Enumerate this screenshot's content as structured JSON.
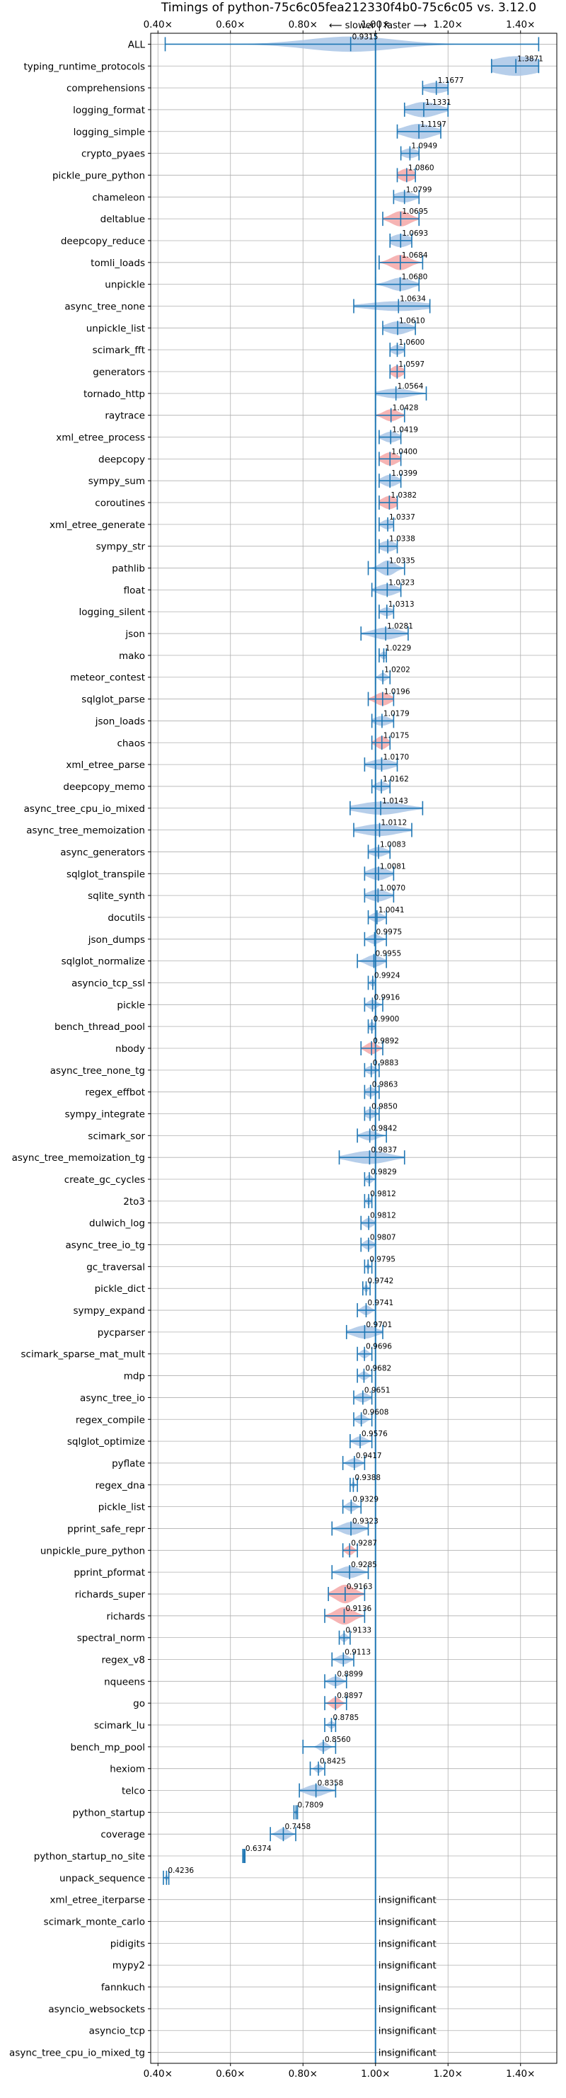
{
  "chart_data": {
    "type": "violin",
    "title": "Timings of python-75c6c05fea212330f4b0-75c6c05 vs. 3.12.0",
    "subtitle": "⟵ slower | faster ⟶",
    "xlim": [
      0.38,
      1.5
    ],
    "xticks": [
      "0.40×",
      "0.60×",
      "0.80×",
      "1.00×",
      "1.20×",
      "1.40×"
    ],
    "xtick_values": [
      0.4,
      0.6,
      0.8,
      1.0,
      1.2,
      1.4
    ],
    "reference_line": 1.0,
    "grid": true,
    "insignificant_label": "insignificant",
    "benchmarks": [
      {
        "name": "ALL",
        "value": 0.9315,
        "label": "0.9315",
        "lo": 0.42,
        "hi": 1.45,
        "spread": 0.12,
        "width": 0.7,
        "color": "blue"
      },
      {
        "name": "typing_runtime_protocols",
        "value": 1.3871,
        "label": "1.3871",
        "lo": 1.32,
        "hi": 1.45,
        "spread": 0.07,
        "width": 0.9,
        "color": "blue"
      },
      {
        "name": "comprehensions",
        "value": 1.1677,
        "label": "1.1677",
        "lo": 1.13,
        "hi": 1.2,
        "spread": 0.03,
        "width": 0.5,
        "color": "blue"
      },
      {
        "name": "logging_format",
        "value": 1.1331,
        "label": "1.1331",
        "lo": 1.08,
        "hi": 1.2,
        "spread": 0.04,
        "width": 0.7,
        "color": "blue"
      },
      {
        "name": "logging_simple",
        "value": 1.1197,
        "label": "1.1197",
        "lo": 1.06,
        "hi": 1.18,
        "spread": 0.04,
        "width": 0.7,
        "color": "blue"
      },
      {
        "name": "crypto_pyaes",
        "value": 1.0949,
        "label": "1.0949",
        "lo": 1.07,
        "hi": 1.12,
        "spread": 0.02,
        "width": 0.45,
        "color": "blue"
      },
      {
        "name": "pickle_pure_python",
        "value": 1.086,
        "label": "1.0860",
        "lo": 1.06,
        "hi": 1.11,
        "spread": 0.02,
        "width": 0.6,
        "color": "red"
      },
      {
        "name": "chameleon",
        "value": 1.0799,
        "label": "1.0799",
        "lo": 1.05,
        "hi": 1.12,
        "spread": 0.025,
        "width": 0.5,
        "color": "blue"
      },
      {
        "name": "deltablue",
        "value": 1.0695,
        "label": "1.0695",
        "lo": 1.02,
        "hi": 1.12,
        "spread": 0.025,
        "width": 0.7,
        "color": "red"
      },
      {
        "name": "deepcopy_reduce",
        "value": 1.0693,
        "label": "1.0693",
        "lo": 1.04,
        "hi": 1.1,
        "spread": 0.025,
        "width": 0.6,
        "color": "blue"
      },
      {
        "name": "tomli_loads",
        "value": 1.0684,
        "label": "1.0684",
        "lo": 1.01,
        "hi": 1.13,
        "spread": 0.025,
        "width": 0.7,
        "color": "red"
      },
      {
        "name": "unpickle",
        "value": 1.068,
        "label": "1.0680",
        "lo": 1.0,
        "hi": 1.12,
        "spread": 0.03,
        "width": 0.6,
        "color": "blue"
      },
      {
        "name": "async_tree_none",
        "value": 1.0634,
        "label": "1.0634",
        "lo": 0.94,
        "hi": 1.15,
        "spread": 0.08,
        "width": 0.45,
        "color": "blue"
      },
      {
        "name": "unpickle_list",
        "value": 1.061,
        "label": "1.0610",
        "lo": 1.02,
        "hi": 1.11,
        "spread": 0.03,
        "width": 0.6,
        "color": "blue"
      },
      {
        "name": "scimark_fft",
        "value": 1.06,
        "label": "1.0600",
        "lo": 1.04,
        "hi": 1.08,
        "spread": 0.015,
        "width": 0.45,
        "color": "blue"
      },
      {
        "name": "generators",
        "value": 1.0597,
        "label": "1.0597",
        "lo": 1.04,
        "hi": 1.08,
        "spread": 0.015,
        "width": 0.55,
        "color": "red"
      },
      {
        "name": "tornado_http",
        "value": 1.0564,
        "label": "1.0564",
        "lo": 1.0,
        "hi": 1.14,
        "spread": 0.04,
        "width": 0.45,
        "color": "blue"
      },
      {
        "name": "raytrace",
        "value": 1.0428,
        "label": "1.0428",
        "lo": 1.0,
        "hi": 1.08,
        "spread": 0.02,
        "width": 0.55,
        "color": "red"
      },
      {
        "name": "xml_etree_process",
        "value": 1.0419,
        "label": "1.0419",
        "lo": 1.01,
        "hi": 1.07,
        "spread": 0.02,
        "width": 0.5,
        "color": "blue"
      },
      {
        "name": "deepcopy",
        "value": 1.04,
        "label": "1.0400",
        "lo": 1.01,
        "hi": 1.07,
        "spread": 0.02,
        "width": 0.6,
        "color": "red"
      },
      {
        "name": "sympy_sum",
        "value": 1.0399,
        "label": "1.0399",
        "lo": 1.01,
        "hi": 1.07,
        "spread": 0.02,
        "width": 0.55,
        "color": "blue"
      },
      {
        "name": "coroutines",
        "value": 1.0382,
        "label": "1.0382",
        "lo": 1.01,
        "hi": 1.06,
        "spread": 0.02,
        "width": 0.6,
        "color": "red"
      },
      {
        "name": "xml_etree_generate",
        "value": 1.0337,
        "label": "1.0337",
        "lo": 1.01,
        "hi": 1.05,
        "spread": 0.015,
        "width": 0.45,
        "color": "blue"
      },
      {
        "name": "sympy_str",
        "value": 1.0338,
        "label": "1.0338",
        "lo": 1.01,
        "hi": 1.06,
        "spread": 0.02,
        "width": 0.5,
        "color": "blue"
      },
      {
        "name": "pathlib",
        "value": 1.0335,
        "label": "1.0335",
        "lo": 0.98,
        "hi": 1.08,
        "spread": 0.02,
        "width": 0.7,
        "color": "blue"
      },
      {
        "name": "float",
        "value": 1.0323,
        "label": "1.0323",
        "lo": 0.99,
        "hi": 1.07,
        "spread": 0.025,
        "width": 0.55,
        "color": "blue"
      },
      {
        "name": "logging_silent",
        "value": 1.0313,
        "label": "1.0313",
        "lo": 1.01,
        "hi": 1.05,
        "spread": 0.015,
        "width": 0.4,
        "color": "blue"
      },
      {
        "name": "json",
        "value": 1.0281,
        "label": "1.0281",
        "lo": 0.96,
        "hi": 1.09,
        "spread": 0.035,
        "width": 0.55,
        "color": "blue"
      },
      {
        "name": "mako",
        "value": 1.0229,
        "label": "1.0229",
        "lo": 1.01,
        "hi": 1.03,
        "spread": 0.008,
        "width": 0.35,
        "color": "blue"
      },
      {
        "name": "meteor_contest",
        "value": 1.0202,
        "label": "1.0202",
        "lo": 1.0,
        "hi": 1.04,
        "spread": 0.01,
        "width": 0.4,
        "color": "blue"
      },
      {
        "name": "sqlglot_parse",
        "value": 1.0196,
        "label": "1.0196",
        "lo": 0.98,
        "hi": 1.05,
        "spread": 0.02,
        "width": 0.6,
        "color": "red"
      },
      {
        "name": "json_loads",
        "value": 1.0179,
        "label": "1.0179",
        "lo": 0.99,
        "hi": 1.05,
        "spread": 0.02,
        "width": 0.45,
        "color": "blue"
      },
      {
        "name": "chaos",
        "value": 1.0175,
        "label": "1.0175",
        "lo": 0.99,
        "hi": 1.04,
        "spread": 0.015,
        "width": 0.6,
        "color": "red"
      },
      {
        "name": "xml_etree_parse",
        "value": 1.017,
        "label": "1.0170",
        "lo": 0.97,
        "hi": 1.06,
        "spread": 0.03,
        "width": 0.5,
        "color": "blue"
      },
      {
        "name": "deepcopy_memo",
        "value": 1.0162,
        "label": "1.0162",
        "lo": 0.99,
        "hi": 1.04,
        "spread": 0.015,
        "width": 0.45,
        "color": "blue"
      },
      {
        "name": "async_tree_cpu_io_mixed",
        "value": 1.0143,
        "label": "1.0143",
        "lo": 0.93,
        "hi": 1.13,
        "spread": 0.06,
        "width": 0.6,
        "color": "blue"
      },
      {
        "name": "async_tree_memoization",
        "value": 1.0112,
        "label": "1.0112",
        "lo": 0.94,
        "hi": 1.1,
        "spread": 0.05,
        "width": 0.55,
        "color": "blue"
      },
      {
        "name": "async_generators",
        "value": 1.0083,
        "label": "1.0083",
        "lo": 0.98,
        "hi": 1.04,
        "spread": 0.02,
        "width": 0.45,
        "color": "blue"
      },
      {
        "name": "sqlglot_transpile",
        "value": 1.0081,
        "label": "1.0081",
        "lo": 0.97,
        "hi": 1.05,
        "spread": 0.025,
        "width": 0.6,
        "color": "blue"
      },
      {
        "name": "sqlite_synth",
        "value": 1.007,
        "label": "1.0070",
        "lo": 0.97,
        "hi": 1.05,
        "spread": 0.025,
        "width": 0.55,
        "color": "blue"
      },
      {
        "name": "docutils",
        "value": 1.0041,
        "label": "1.0041",
        "lo": 0.98,
        "hi": 1.03,
        "spread": 0.015,
        "width": 0.45,
        "color": "blue"
      },
      {
        "name": "json_dumps",
        "value": 0.9975,
        "label": "0.9975",
        "lo": 0.97,
        "hi": 1.03,
        "spread": 0.015,
        "width": 0.45,
        "color": "blue"
      },
      {
        "name": "sqlglot_normalize",
        "value": 0.9955,
        "label": "0.9955",
        "lo": 0.95,
        "hi": 1.03,
        "spread": 0.02,
        "width": 0.55,
        "color": "blue"
      },
      {
        "name": "asyncio_tcp_ssl",
        "value": 0.9924,
        "label": "0.9924",
        "lo": 0.98,
        "hi": 1.0,
        "spread": 0.006,
        "width": 0.35,
        "color": "blue"
      },
      {
        "name": "pickle",
        "value": 0.9916,
        "label": "0.9916",
        "lo": 0.97,
        "hi": 1.02,
        "spread": 0.012,
        "width": 0.45,
        "color": "blue"
      },
      {
        "name": "bench_thread_pool",
        "value": 0.99,
        "label": "0.9900",
        "lo": 0.98,
        "hi": 1.0,
        "spread": 0.008,
        "width": 0.4,
        "color": "blue"
      },
      {
        "name": "nbody",
        "value": 0.9892,
        "label": "0.9892",
        "lo": 0.96,
        "hi": 1.02,
        "spread": 0.015,
        "width": 0.55,
        "color": "red"
      },
      {
        "name": "async_tree_none_tg",
        "value": 0.9883,
        "label": "0.9883",
        "lo": 0.97,
        "hi": 1.01,
        "spread": 0.012,
        "width": 0.4,
        "color": "blue"
      },
      {
        "name": "regex_effbot",
        "value": 0.9863,
        "label": "0.9863",
        "lo": 0.97,
        "hi": 1.01,
        "spread": 0.012,
        "width": 0.45,
        "color": "blue"
      },
      {
        "name": "sympy_integrate",
        "value": 0.985,
        "label": "0.9850",
        "lo": 0.97,
        "hi": 1.01,
        "spread": 0.012,
        "width": 0.45,
        "color": "blue"
      },
      {
        "name": "scimark_sor",
        "value": 0.9842,
        "label": "0.9842",
        "lo": 0.95,
        "hi": 1.03,
        "spread": 0.02,
        "width": 0.45,
        "color": "blue"
      },
      {
        "name": "async_tree_memoization_tg",
        "value": 0.9837,
        "label": "0.9837",
        "lo": 0.9,
        "hi": 1.08,
        "spread": 0.05,
        "width": 0.6,
        "color": "blue"
      },
      {
        "name": "create_gc_cycles",
        "value": 0.9829,
        "label": "0.9829",
        "lo": 0.97,
        "hi": 1.0,
        "spread": 0.008,
        "width": 0.4,
        "color": "blue"
      },
      {
        "name": "2to3",
        "value": 0.9812,
        "label": "0.9812",
        "lo": 0.97,
        "hi": 0.99,
        "spread": 0.006,
        "width": 0.35,
        "color": "blue"
      },
      {
        "name": "dulwich_log",
        "value": 0.9812,
        "label": "0.9812",
        "lo": 0.96,
        "hi": 1.0,
        "spread": 0.012,
        "width": 0.45,
        "color": "blue"
      },
      {
        "name": "async_tree_io_tg",
        "value": 0.9807,
        "label": "0.9807",
        "lo": 0.96,
        "hi": 1.0,
        "spread": 0.012,
        "width": 0.45,
        "color": "blue"
      },
      {
        "name": "gc_traversal",
        "value": 0.9795,
        "label": "0.9795",
        "lo": 0.97,
        "hi": 0.99,
        "spread": 0.004,
        "width": 0.3,
        "color": "blue"
      },
      {
        "name": "pickle_dict",
        "value": 0.9742,
        "label": "0.9742",
        "lo": 0.965,
        "hi": 0.985,
        "spread": 0.005,
        "width": 0.35,
        "color": "blue"
      },
      {
        "name": "sympy_expand",
        "value": 0.9741,
        "label": "0.9741",
        "lo": 0.95,
        "hi": 1.0,
        "spread": 0.012,
        "width": 0.45,
        "color": "blue"
      },
      {
        "name": "pycparser",
        "value": 0.9701,
        "label": "0.9701",
        "lo": 0.92,
        "hi": 1.02,
        "spread": 0.03,
        "width": 0.6,
        "color": "blue"
      },
      {
        "name": "scimark_sparse_mat_mult",
        "value": 0.9696,
        "label": "0.9696",
        "lo": 0.95,
        "hi": 0.99,
        "spread": 0.01,
        "width": 0.4,
        "color": "blue"
      },
      {
        "name": "mdp",
        "value": 0.9682,
        "label": "0.9682",
        "lo": 0.95,
        "hi": 0.99,
        "spread": 0.01,
        "width": 0.4,
        "color": "blue"
      },
      {
        "name": "async_tree_io",
        "value": 0.9651,
        "label": "0.9651",
        "lo": 0.94,
        "hi": 0.99,
        "spread": 0.015,
        "width": 0.45,
        "color": "blue"
      },
      {
        "name": "regex_compile",
        "value": 0.9608,
        "label": "0.9608",
        "lo": 0.94,
        "hi": 0.99,
        "spread": 0.012,
        "width": 0.45,
        "color": "blue"
      },
      {
        "name": "sqlglot_optimize",
        "value": 0.9576,
        "label": "0.9576",
        "lo": 0.93,
        "hi": 0.99,
        "spread": 0.015,
        "width": 0.45,
        "color": "blue"
      },
      {
        "name": "pyflate",
        "value": 0.9417,
        "label": "0.9417",
        "lo": 0.91,
        "hi": 0.97,
        "spread": 0.015,
        "width": 0.45,
        "color": "blue"
      },
      {
        "name": "regex_dna",
        "value": 0.9388,
        "label": "0.9388",
        "lo": 0.93,
        "hi": 0.95,
        "spread": 0.004,
        "width": 0.3,
        "color": "blue"
      },
      {
        "name": "pickle_list",
        "value": 0.9329,
        "label": "0.9329",
        "lo": 0.91,
        "hi": 0.96,
        "spread": 0.012,
        "width": 0.45,
        "color": "blue"
      },
      {
        "name": "pprint_safe_repr",
        "value": 0.9323,
        "label": "0.9323",
        "lo": 0.88,
        "hi": 0.98,
        "spread": 0.025,
        "width": 0.6,
        "color": "blue"
      },
      {
        "name": "unpickle_pure_python",
        "value": 0.9287,
        "label": "0.9287",
        "lo": 0.91,
        "hi": 0.95,
        "spread": 0.01,
        "width": 0.45,
        "color": "red"
      },
      {
        "name": "pprint_pformat",
        "value": 0.9285,
        "label": "0.9285",
        "lo": 0.88,
        "hi": 0.98,
        "spread": 0.025,
        "width": 0.55,
        "color": "blue"
      },
      {
        "name": "richards_super",
        "value": 0.9163,
        "label": "0.9163",
        "lo": 0.87,
        "hi": 0.97,
        "spread": 0.025,
        "width": 0.85,
        "color": "red"
      },
      {
        "name": "richards",
        "value": 0.9136,
        "label": "0.9136",
        "lo": 0.86,
        "hi": 0.97,
        "spread": 0.025,
        "width": 0.8,
        "color": "red"
      },
      {
        "name": "spectral_norm",
        "value": 0.9133,
        "label": "0.9133",
        "lo": 0.9,
        "hi": 0.93,
        "spread": 0.008,
        "width": 0.4,
        "color": "blue"
      },
      {
        "name": "regex_v8",
        "value": 0.9113,
        "label": "0.9113",
        "lo": 0.88,
        "hi": 0.94,
        "spread": 0.015,
        "width": 0.45,
        "color": "blue"
      },
      {
        "name": "nqueens",
        "value": 0.8899,
        "label": "0.8899",
        "lo": 0.86,
        "hi": 0.92,
        "spread": 0.015,
        "width": 0.45,
        "color": "blue"
      },
      {
        "name": "go",
        "value": 0.8897,
        "label": "0.8897",
        "lo": 0.86,
        "hi": 0.92,
        "spread": 0.012,
        "width": 0.55,
        "color": "red"
      },
      {
        "name": "scimark_lu",
        "value": 0.8785,
        "label": "0.8785",
        "lo": 0.86,
        "hi": 0.89,
        "spread": 0.008,
        "width": 0.35,
        "color": "blue"
      },
      {
        "name": "bench_mp_pool",
        "value": 0.856,
        "label": "0.8560",
        "lo": 0.8,
        "hi": 0.89,
        "spread": 0.012,
        "width": 0.45,
        "color": "blue"
      },
      {
        "name": "hexiom",
        "value": 0.8425,
        "label": "0.8425",
        "lo": 0.82,
        "hi": 0.86,
        "spread": 0.008,
        "width": 0.4,
        "color": "blue"
      },
      {
        "name": "telco",
        "value": 0.8358,
        "label": "0.8358",
        "lo": 0.79,
        "hi": 0.89,
        "spread": 0.025,
        "width": 0.55,
        "color": "blue"
      },
      {
        "name": "python_startup",
        "value": 0.7809,
        "label": "0.7809",
        "lo": 0.775,
        "hi": 0.785,
        "spread": 0.002,
        "width": 0.3,
        "color": "blue"
      },
      {
        "name": "coverage",
        "value": 0.7458,
        "label": "0.7458",
        "lo": 0.71,
        "hi": 0.78,
        "spread": 0.015,
        "width": 0.55,
        "color": "blue"
      },
      {
        "name": "python_startup_no_site",
        "value": 0.6374,
        "label": "0.6374",
        "lo": 0.634,
        "hi": 0.64,
        "spread": 0.002,
        "width": 0.3,
        "color": "blue"
      },
      {
        "name": "unpack_sequence",
        "value": 0.4236,
        "label": "0.4236",
        "lo": 0.415,
        "hi": 0.43,
        "spread": 0.003,
        "width": 0.3,
        "color": "blue"
      },
      {
        "name": "xml_etree_iterparse",
        "insignificant": true
      },
      {
        "name": "scimark_monte_carlo",
        "insignificant": true
      },
      {
        "name": "pidigits",
        "insignificant": true
      },
      {
        "name": "mypy2",
        "insignificant": true
      },
      {
        "name": "fannkuch",
        "insignificant": true
      },
      {
        "name": "asyncio_websockets",
        "insignificant": true
      },
      {
        "name": "asyncio_tcp",
        "insignificant": true
      },
      {
        "name": "async_tree_cpu_io_mixed_tg",
        "insignificant": true
      }
    ],
    "colors": {
      "line": "#1f77b4",
      "violin_blue": "#a9c6e6",
      "violin_red": "#f4a7a7",
      "grid": "#b0b0b0",
      "axis": "#000000"
    }
  }
}
